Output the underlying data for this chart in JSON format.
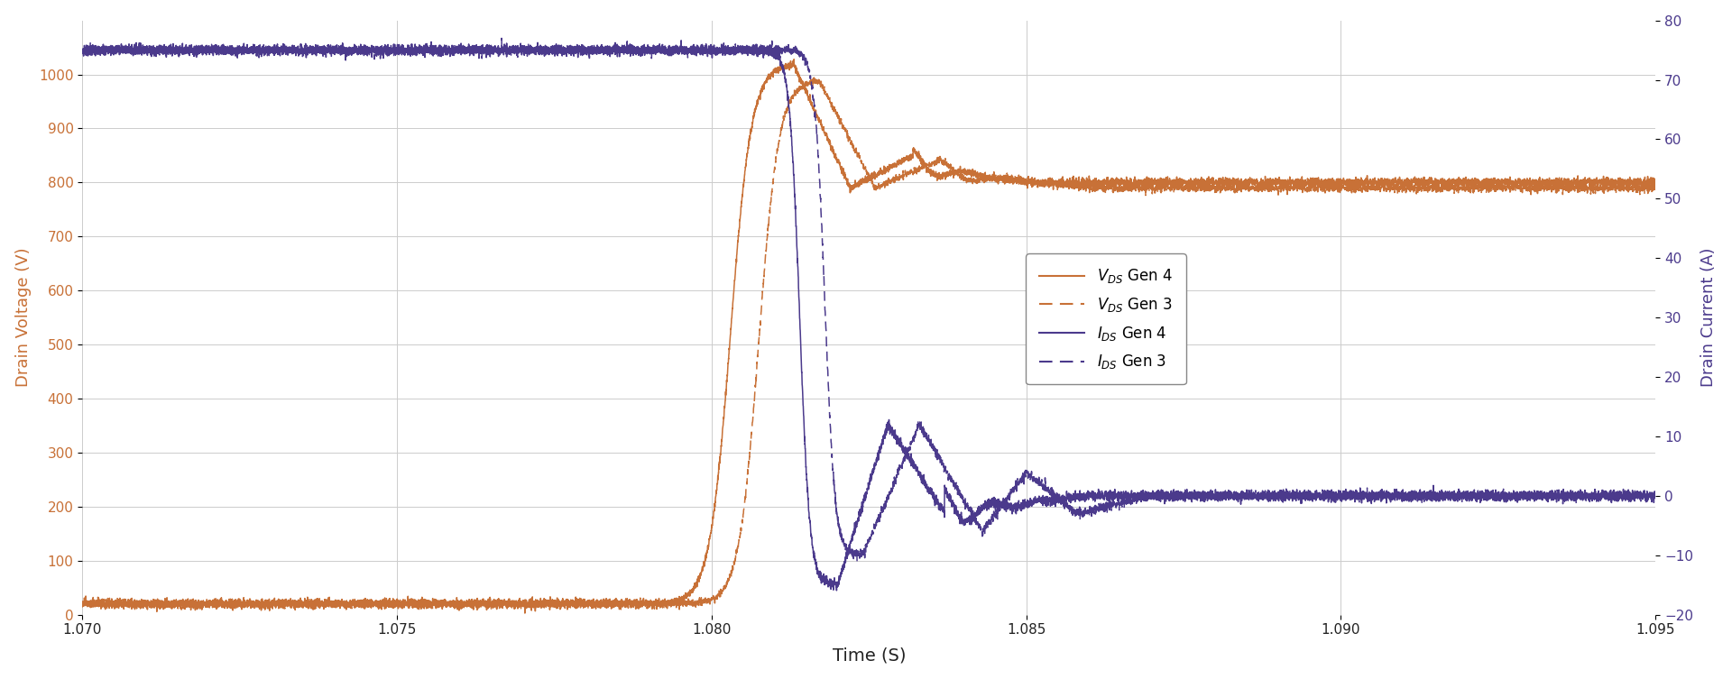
{
  "xlabel": "Time (S)",
  "ylabel_left": "Drain Voltage (V)",
  "ylabel_right": "Drain Current (A)",
  "xlim": [
    1.07,
    1.095
  ],
  "ylim_left": [
    0,
    1100
  ],
  "ylim_right": [
    -20,
    80
  ],
  "xticks": [
    1.07,
    1.075,
    1.08,
    1.085,
    1.09,
    1.095
  ],
  "yticks_left": [
    0,
    100,
    200,
    300,
    400,
    500,
    600,
    700,
    800,
    900,
    1000
  ],
  "yticks_right": [
    -20,
    -10,
    0,
    10,
    20,
    30,
    40,
    50,
    60,
    70,
    80
  ],
  "color_voltage": "#C87137",
  "color_current": "#4B3A8C",
  "bg_color": "#FFFFFF",
  "grid_color": "#CCCCCC",
  "legend_labels": [
    "$V_{DS}$ Gen 4",
    "$V_{DS}$ Gen 3",
    "$I_{DS}$ Gen 4",
    "$I_{DS}$ Gen 3"
  ]
}
